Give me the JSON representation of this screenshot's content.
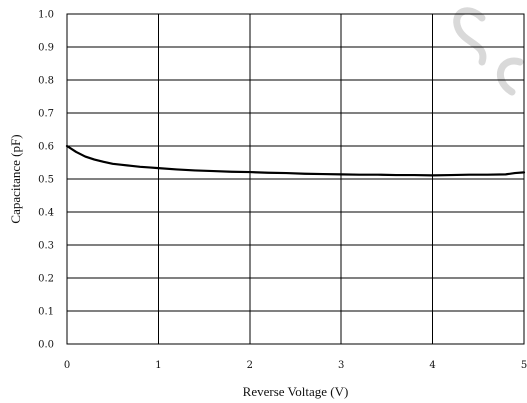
{
  "chart_data": {
    "type": "line",
    "xlabel": "Reverse Voltage (V)",
    "ylabel": "Capacitance (pF)",
    "xlim": [
      0,
      5
    ],
    "ylim": [
      0.0,
      1.0
    ],
    "x_ticks": [
      "0",
      "1",
      "2",
      "3",
      "4",
      "5"
    ],
    "y_ticks": [
      "0.0",
      "0.1",
      "0.2",
      "0.3",
      "0.4",
      "0.5",
      "0.6",
      "0.7",
      "0.8",
      "0.9",
      "1.0"
    ],
    "grid": true,
    "series": [
      {
        "x": [
          0,
          0.1,
          0.2,
          0.3,
          0.4,
          0.5,
          0.6,
          0.7,
          0.8,
          0.9,
          1.0,
          1.2,
          1.4,
          1.6,
          1.8,
          2.0,
          2.2,
          2.4,
          2.6,
          2.8,
          3.0,
          3.2,
          3.4,
          3.6,
          3.8,
          4.0,
          4.2,
          4.4,
          4.6,
          4.8,
          4.9,
          5.0
        ],
        "values": [
          0.6,
          0.582,
          0.568,
          0.559,
          0.552,
          0.546,
          0.543,
          0.54,
          0.537,
          0.535,
          0.533,
          0.529,
          0.526,
          0.524,
          0.522,
          0.521,
          0.519,
          0.518,
          0.516,
          0.515,
          0.514,
          0.513,
          0.513,
          0.512,
          0.512,
          0.511,
          0.512,
          0.513,
          0.513,
          0.514,
          0.518,
          0.52
        ]
      }
    ]
  }
}
